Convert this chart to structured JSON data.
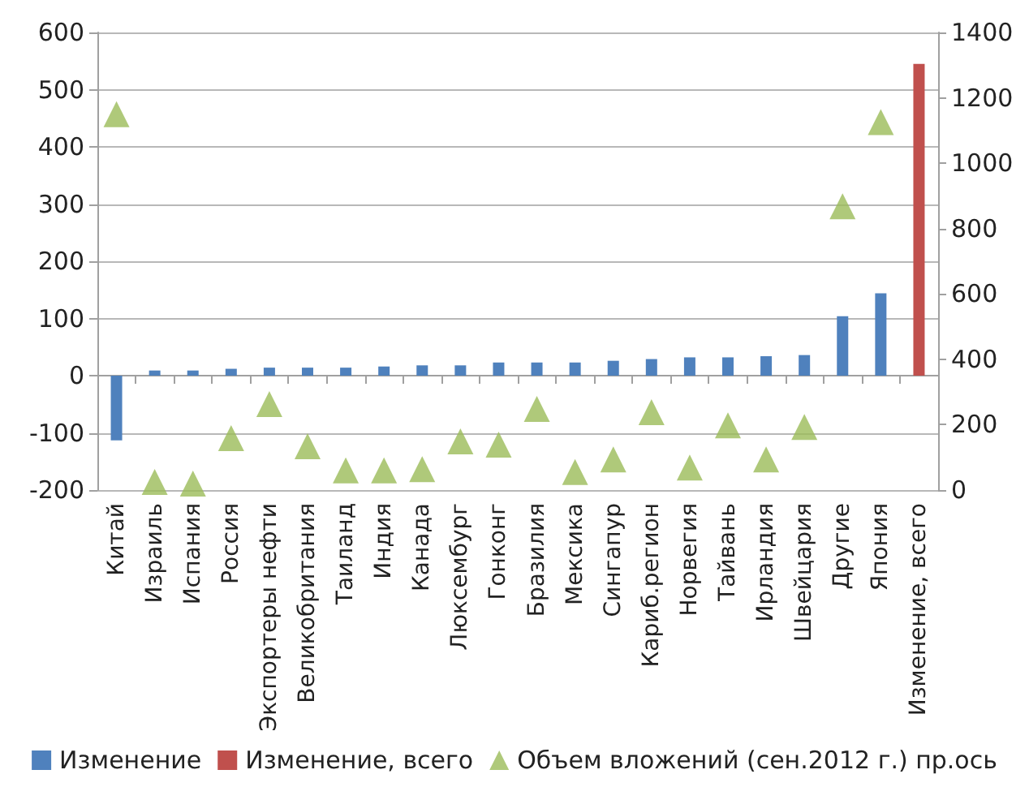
{
  "chart_data": {
    "type": "bar",
    "categories": [
      "Китай",
      "Израиль",
      "Испания",
      "Россия",
      "Экспортеры нефти",
      "Великобритания",
      "Таиланд",
      "Индия",
      "Канада",
      "Люксембург",
      "Гонконг",
      "Бразилия",
      "Мексика",
      "Сингапур",
      "Кариб.регион",
      "Норвегия",
      "Тайвань",
      "Ирландия",
      "Швейцария",
      "Другие",
      "Япония",
      "Изменение, всего"
    ],
    "series": [
      {
        "name": "Изменение",
        "color": "#4f81bd",
        "values": [
          -113,
          9,
          9,
          12,
          14,
          14,
          14,
          16,
          18,
          18,
          23,
          23,
          23,
          26,
          29,
          32,
          32,
          34,
          36,
          104,
          144,
          null
        ]
      },
      {
        "name": "Изменение, всего",
        "color": "#c0504d",
        "values": [
          null,
          null,
          null,
          null,
          null,
          null,
          null,
          null,
          null,
          null,
          null,
          null,
          null,
          null,
          null,
          null,
          null,
          null,
          null,
          null,
          null,
          545
        ]
      },
      {
        "name": "Объем вложений (сен.2012 г.) пр.ось",
        "type": "scatter",
        "axis": "y2",
        "marker": "triangle",
        "color": "#9bbb59",
        "values": [
          1150,
          25,
          20,
          159,
          263,
          134,
          60,
          60,
          64,
          149,
          139,
          248,
          55,
          94,
          238,
          69,
          198,
          94,
          193,
          868,
          1126,
          null
        ]
      }
    ],
    "ylim": [
      -200,
      600
    ],
    "yticks": [
      -200,
      -100,
      0,
      100,
      200,
      300,
      400,
      500,
      600
    ],
    "y2lim": [
      0,
      1400
    ],
    "y2ticks": [
      0,
      200,
      400,
      600,
      800,
      1000,
      1200,
      1400
    ],
    "grid": "y",
    "legend": "bottom"
  }
}
